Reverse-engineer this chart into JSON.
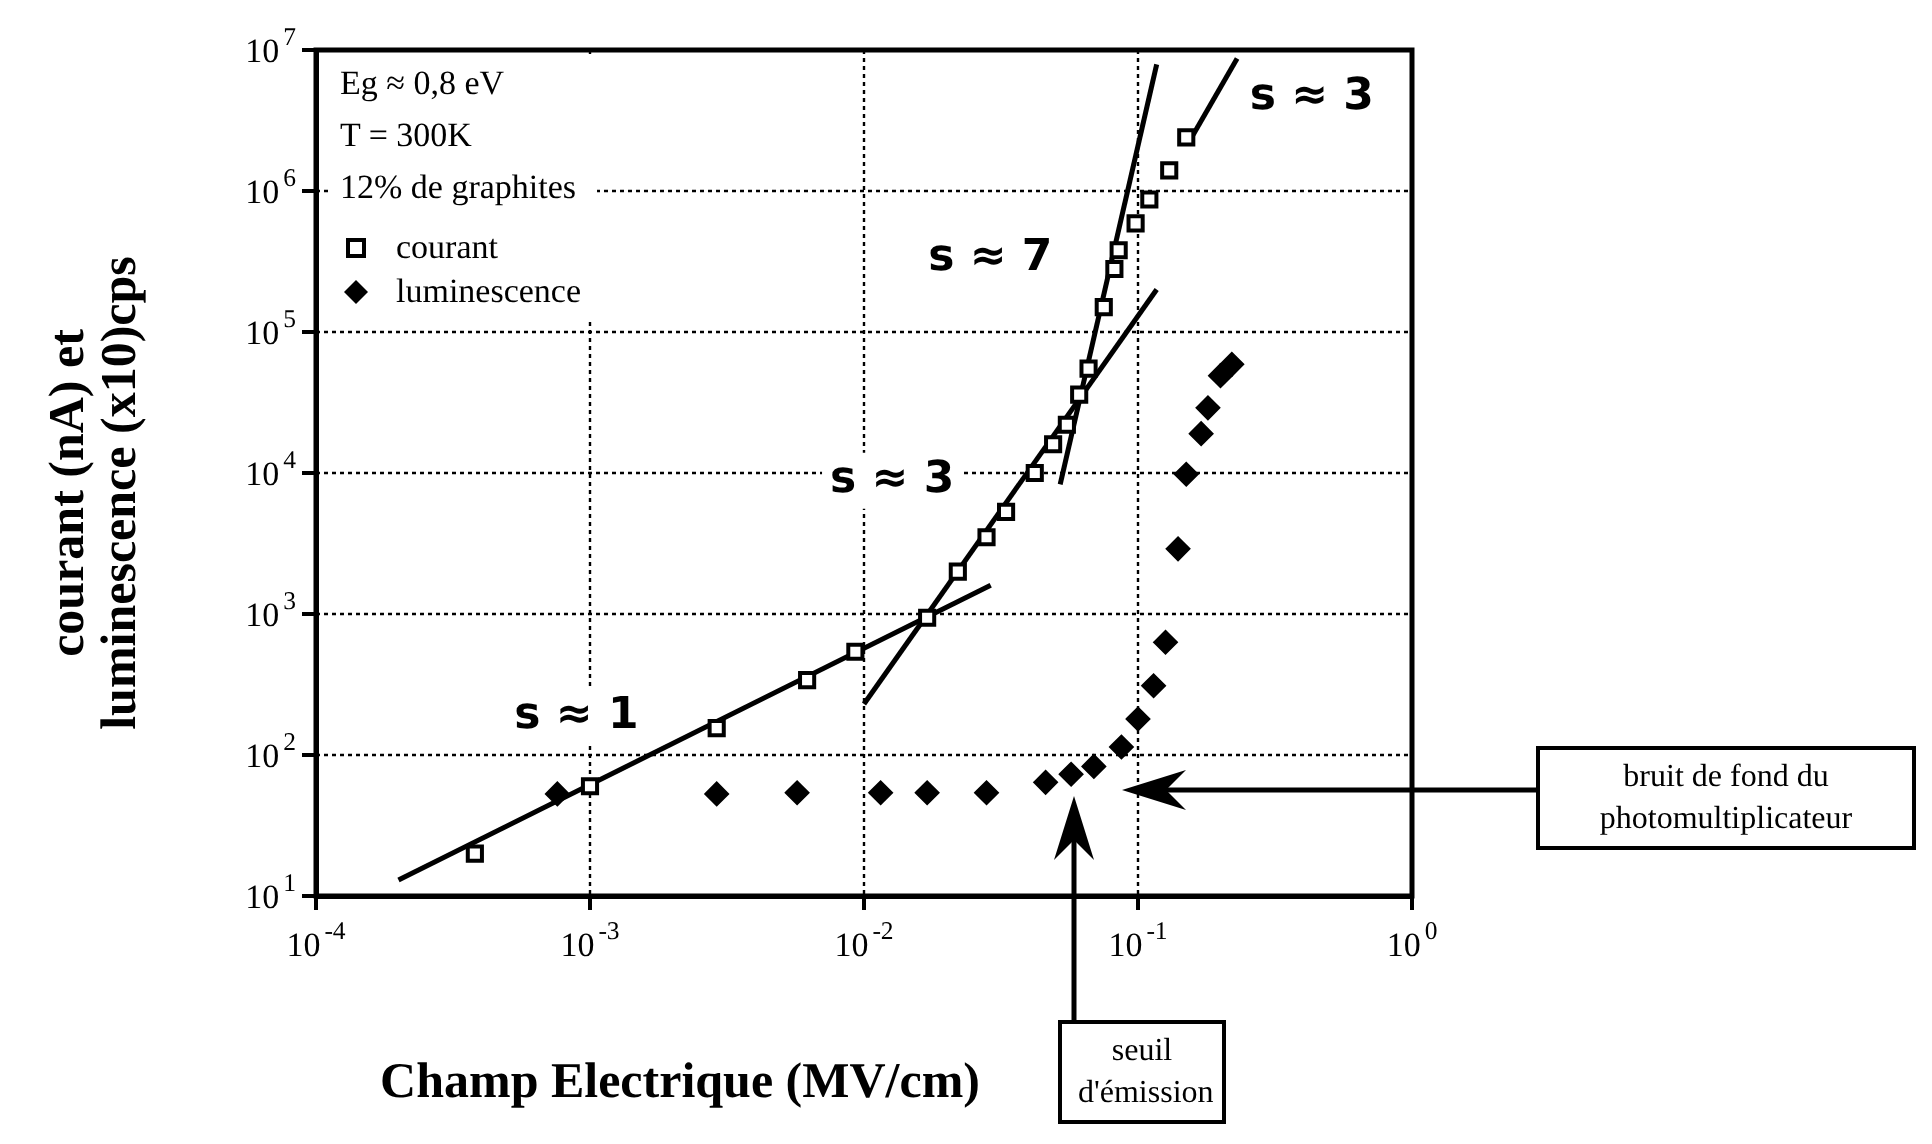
{
  "chart_data": {
    "type": "scatter",
    "xlabel": "Champ Electrique (MV/cm)",
    "ylabel": "courant (nA) et\nluminescence (x10)cps",
    "log": "xy",
    "grid": true,
    "legend": "top left",
    "xlim": [
      0.0001,
      1
    ],
    "ylim": [
      10,
      10000000
    ],
    "xticks": [
      {
        "value": 0.0001,
        "label": "10$^{-4}$"
      },
      {
        "value": 0.001,
        "label": "10$^{-3}$"
      },
      {
        "value": 0.01,
        "label": "10$^{-2}$"
      },
      {
        "value": 0.1,
        "label": "10$^{-1}$"
      },
      {
        "value": 1,
        "label": "10$^{0}$"
      }
    ],
    "yticks": [
      {
        "value": 10,
        "label": "10$^{1}$"
      },
      {
        "value": 100,
        "label": "10$^{2}$"
      },
      {
        "value": 1000,
        "label": "10$^{3}$"
      },
      {
        "value": 10000,
        "label": "10$^{4}$"
      },
      {
        "value": 100000,
        "label": "10$^{5}$"
      },
      {
        "value": 1000000,
        "label": "10$^{6}$"
      },
      {
        "value": 10000000,
        "label": "10$^{7}$"
      }
    ],
    "series": [
      {
        "name": "courant",
        "marker": "square",
        "color": "#000000",
        "x": [
          0.00038,
          0.001,
          0.0029,
          0.0062,
          0.0093,
          0.017,
          0.022,
          0.028,
          0.033,
          0.042,
          0.049,
          0.055,
          0.061,
          0.066,
          0.075,
          0.082,
          0.085,
          0.098,
          0.11,
          0.13,
          0.15
        ],
        "values": [
          20,
          60,
          155,
          340,
          540,
          940,
          2000,
          3500,
          5300,
          10000,
          16000,
          22000,
          36000,
          55000,
          150000,
          280000,
          380000,
          590000,
          870000,
          1400000,
          2400000
        ]
      },
      {
        "name": "luminescence",
        "marker": "diamond",
        "color": "#000000",
        "x": [
          0.00076,
          0.0029,
          0.0057,
          0.0115,
          0.017,
          0.028,
          0.046,
          0.057,
          0.069,
          0.087,
          0.1,
          0.114,
          0.126,
          0.14,
          0.15,
          0.17,
          0.18,
          0.2,
          0.22
        ],
        "values": [
          53,
          53,
          54,
          54,
          54,
          54,
          64,
          73,
          83,
          114,
          180,
          310,
          630,
          2900,
          9800,
          19000,
          29000,
          49000,
          59000
        ]
      },
      {
        "name": "s ≈ 1",
        "type": "line",
        "marker": "none",
        "color": "#000000",
        "x": [
          0.0002,
          0.029
        ],
        "values": [
          13,
          1600
        ]
      },
      {
        "name": "s ≈ 3",
        "type": "line",
        "marker": "none",
        "color": "#000000",
        "x": [
          0.01,
          0.117
        ],
        "values": [
          230,
          200000
        ]
      },
      {
        "name": "s ≈ 7",
        "type": "line",
        "marker": "none",
        "color": "#000000",
        "x": [
          0.052,
          0.117
        ],
        "values": [
          8300,
          7900000
        ]
      },
      {
        "name": "s ≈ 3",
        "type": "line",
        "marker": "none",
        "color": "#000000",
        "x": [
          0.155,
          0.23
        ],
        "values": [
          2300000,
          8700000
        ]
      }
    ],
    "annotations": [
      "Eg ≈ 0,8 eV",
      "T = 300K",
      "12% de graphites",
      "bruit de fond du photomultiplicateur",
      "seuil d'émission"
    ]
  }
}
